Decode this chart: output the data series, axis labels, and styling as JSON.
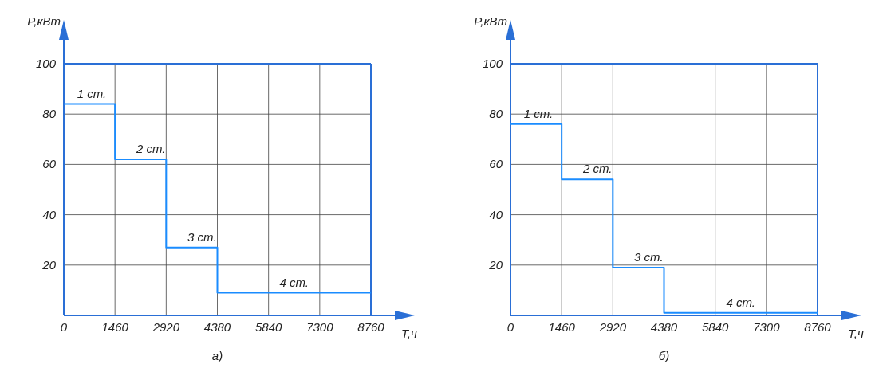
{
  "chart_data": [
    {
      "type": "step",
      "title": "а)",
      "xlabel": "T,ч",
      "ylabel": "P,кВт",
      "x": [
        0,
        1460,
        2920,
        4380,
        8760
      ],
      "values": [
        84,
        62,
        27,
        9,
        9
      ],
      "color": "#1a8cff",
      "xlim": [
        0,
        8760
      ],
      "ylim": [
        0,
        100
      ],
      "xticks": [
        0,
        1460,
        2920,
        4380,
        5840,
        7300,
        8760
      ],
      "yticks": [
        20,
        40,
        60,
        80,
        100
      ],
      "grid": true,
      "annotations": [
        "1 ст.",
        "2 ст.",
        "3 ст.",
        "4 ст."
      ]
    },
    {
      "type": "step",
      "title": "б)",
      "xlabel": "T,ч",
      "ylabel": "P,кВт",
      "x": [
        0,
        1460,
        2920,
        4380,
        8760
      ],
      "values": [
        76,
        54,
        19,
        1,
        1
      ],
      "color": "#1a8cff",
      "xlim": [
        0,
        8760
      ],
      "ylim": [
        0,
        100
      ],
      "xticks": [
        0,
        1460,
        2920,
        4380,
        5840,
        7300,
        8760
      ],
      "yticks": [
        20,
        40,
        60,
        80,
        100
      ],
      "grid": true,
      "annotations": [
        "1 ст.",
        "2 ст.",
        "3 ст.",
        "4 ст."
      ]
    }
  ]
}
